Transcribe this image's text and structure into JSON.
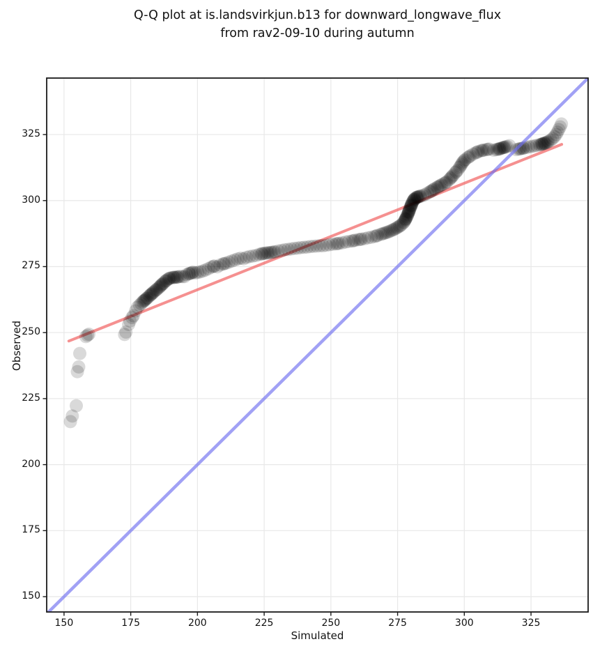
{
  "title": {
    "line1": "Q-Q plot at is.landsvirkjun.b13 for downward_longwave_flux",
    "line2": "from rav2-09-10 during autumn"
  },
  "colors": {
    "background": "#ffffff",
    "grid": "#e8e8e8",
    "spine": "#1a1a1a",
    "identity_line": "#6e6ef0",
    "fit_line": "#f05555",
    "scatter": "#000000"
  },
  "chart_data": {
    "type": "scatter",
    "title": "Q-Q plot at is.landsvirkjun.b13 for downward_longwave_flux from rav2-09-10 during autumn",
    "xlabel": "Simulated",
    "ylabel": "Observed",
    "xlim": [
      143.5,
      346.4
    ],
    "ylim": [
      144.2,
      346.4
    ],
    "xticks": [
      150,
      175,
      200,
      225,
      250,
      275,
      300,
      325
    ],
    "yticks": [
      150,
      175,
      200,
      225,
      250,
      275,
      300,
      325
    ],
    "grid": true,
    "legend": "none",
    "identity_line": {
      "name": "identity-1-to-1",
      "color": "#6e6ef0",
      "opacity": 0.65,
      "width": 4.5,
      "points": [
        [
          143.5,
          143.5
        ],
        [
          346.4,
          346.4
        ]
      ]
    },
    "fit_line": {
      "name": "quantile-fit",
      "color": "#f05555",
      "opacity": 0.65,
      "width": 4,
      "points": [
        [
          151.8,
          246.8
        ],
        [
          336.5,
          321.3
        ]
      ]
    },
    "scatter": {
      "name": "qq-points",
      "color": "#000000",
      "opacity": 0.15,
      "radius": 9.5,
      "points": [
        [
          152.4,
          216.3
        ],
        [
          153.1,
          218.4
        ],
        [
          154.6,
          222.3
        ],
        [
          155.0,
          235.2
        ],
        [
          155.5,
          237.0
        ],
        [
          155.9,
          242.1
        ],
        [
          158.2,
          248.5
        ],
        [
          158.8,
          249.0
        ],
        [
          159.3,
          249.4
        ],
        [
          172.7,
          249.3
        ],
        [
          173.2,
          250.2
        ],
        [
          174.2,
          253.1
        ],
        [
          174.7,
          254.4
        ],
        [
          175.5,
          255.7
        ],
        [
          176.0,
          256.4
        ],
        [
          176.8,
          258.2
        ],
        [
          177.5,
          259.6
        ],
        [
          178.3,
          260.4
        ],
        [
          178.9,
          261.0
        ],
        [
          179.5,
          261.6
        ],
        [
          180.1,
          262.1
        ],
        [
          180.7,
          262.7
        ],
        [
          181.3,
          263.2
        ],
        [
          181.9,
          263.8
        ],
        [
          182.5,
          264.4
        ],
        [
          183.1,
          264.9
        ],
        [
          183.7,
          265.5
        ],
        [
          184.3,
          266.0
        ],
        [
          184.9,
          266.5
        ],
        [
          185.5,
          267.0
        ],
        [
          186.1,
          267.6
        ],
        [
          186.7,
          268.2
        ],
        [
          187.3,
          268.8
        ],
        [
          187.9,
          269.4
        ],
        [
          188.5,
          269.9
        ],
        [
          189.1,
          270.3
        ],
        [
          189.7,
          270.6
        ],
        [
          179.8,
          262.0
        ],
        [
          181.0,
          263.0
        ],
        [
          182.2,
          264.1
        ],
        [
          183.4,
          265.2
        ],
        [
          184.6,
          266.2
        ],
        [
          185.8,
          267.3
        ],
        [
          187.0,
          268.5
        ],
        [
          188.2,
          269.6
        ],
        [
          189.4,
          270.5
        ],
        [
          186.4,
          268.0
        ],
        [
          182.8,
          264.6
        ],
        [
          180.4,
          262.4
        ],
        [
          190.3,
          270.8
        ],
        [
          190.9,
          270.9
        ],
        [
          191.5,
          270.9
        ],
        [
          192.1,
          271.0
        ],
        [
          192.8,
          271.1
        ],
        [
          193.5,
          271.3
        ],
        [
          194.3,
          271.2
        ],
        [
          195.1,
          271.2
        ],
        [
          196.0,
          272.0
        ],
        [
          196.8,
          272.3
        ],
        [
          197.6,
          272.5
        ],
        [
          198.4,
          272.9
        ],
        [
          199.2,
          272.6
        ],
        [
          200.1,
          272.8
        ],
        [
          191.2,
          270.9
        ],
        [
          192.4,
          271.0
        ],
        [
          197.0,
          272.4
        ],
        [
          198.0,
          272.7
        ],
        [
          201.0,
          273.0
        ],
        [
          202.0,
          273.3
        ],
        [
          203.0,
          273.7
        ],
        [
          204.1,
          274.2
        ],
        [
          205.2,
          274.8
        ],
        [
          206.3,
          275.2
        ],
        [
          207.4,
          274.9
        ],
        [
          208.5,
          275.6
        ],
        [
          209.6,
          276.0
        ],
        [
          210.7,
          276.3
        ],
        [
          211.8,
          276.7
        ],
        [
          212.9,
          277.1
        ],
        [
          214.0,
          277.5
        ],
        [
          215.1,
          277.9
        ],
        [
          206.0,
          275.1
        ],
        [
          210.0,
          276.1
        ],
        [
          216.2,
          278.2
        ],
        [
          217.3,
          278.0
        ],
        [
          218.4,
          278.5
        ],
        [
          219.5,
          278.8
        ],
        [
          220.7,
          279.0
        ],
        [
          221.9,
          279.2
        ],
        [
          223.1,
          279.6
        ],
        [
          224.3,
          279.9
        ],
        [
          225.5,
          280.1
        ],
        [
          226.7,
          280.2
        ],
        [
          227.9,
          280.4
        ],
        [
          229.1,
          280.6
        ],
        [
          230.3,
          280.9
        ],
        [
          231.5,
          281.1
        ],
        [
          232.7,
          281.4
        ],
        [
          233.9,
          281.5
        ],
        [
          235.1,
          281.7
        ],
        [
          236.3,
          281.9
        ],
        [
          237.5,
          282.0
        ],
        [
          238.7,
          282.2
        ],
        [
          239.9,
          282.3
        ],
        [
          241.1,
          282.4
        ],
        [
          242.3,
          282.6
        ],
        [
          243.5,
          282.7
        ],
        [
          244.7,
          282.8
        ],
        [
          225.0,
          280.0
        ],
        [
          226.2,
          280.2
        ],
        [
          227.4,
          280.3
        ],
        [
          228.6,
          280.5
        ],
        [
          224.0,
          279.8
        ],
        [
          245.9,
          282.9
        ],
        [
          247.1,
          282.9
        ],
        [
          248.3,
          283.1
        ],
        [
          249.5,
          283.3
        ],
        [
          250.7,
          283.5
        ],
        [
          251.9,
          283.6
        ],
        [
          253.1,
          283.8
        ],
        [
          254.3,
          284.0
        ],
        [
          255.5,
          284.3
        ],
        [
          256.7,
          284.5
        ],
        [
          257.9,
          284.7
        ],
        [
          259.1,
          285.0
        ],
        [
          260.3,
          285.2
        ],
        [
          261.5,
          285.4
        ],
        [
          262.7,
          285.6
        ],
        [
          252.5,
          283.7
        ],
        [
          258.5,
          284.8
        ],
        [
          261.0,
          285.3
        ],
        [
          263.9,
          285.9
        ],
        [
          265.1,
          286.1
        ],
        [
          266.3,
          286.4
        ],
        [
          267.5,
          286.8
        ],
        [
          268.7,
          287.2
        ],
        [
          269.9,
          287.6
        ],
        [
          271.1,
          288.0
        ],
        [
          272.3,
          288.5
        ],
        [
          273.5,
          289.0
        ],
        [
          274.6,
          289.6
        ],
        [
          275.6,
          290.2
        ],
        [
          276.5,
          290.9
        ],
        [
          270.5,
          287.8
        ],
        [
          273.0,
          288.8
        ],
        [
          275.0,
          289.9
        ],
        [
          267.0,
          286.6
        ],
        [
          269.3,
          287.4
        ],
        [
          271.7,
          288.2
        ],
        [
          274.0,
          289.3
        ],
        [
          276.0,
          290.5
        ],
        [
          277.2,
          291.6
        ],
        [
          277.7,
          292.4
        ],
        [
          278.1,
          293.2
        ],
        [
          278.5,
          294.0
        ],
        [
          278.8,
          294.8
        ],
        [
          279.1,
          295.6
        ],
        [
          279.4,
          296.4
        ],
        [
          279.7,
          297.2
        ],
        [
          280.0,
          298.0
        ],
        [
          280.3,
          298.8
        ],
        [
          280.7,
          299.6
        ],
        [
          281.1,
          300.3
        ],
        [
          281.6,
          300.9
        ],
        [
          282.2,
          301.3
        ],
        [
          282.9,
          301.5
        ],
        [
          283.6,
          301.7
        ],
        [
          277.4,
          291.9
        ],
        [
          277.9,
          292.8
        ],
        [
          278.3,
          293.6
        ],
        [
          278.7,
          294.4
        ],
        [
          279.0,
          295.2
        ],
        [
          279.3,
          296.0
        ],
        [
          279.6,
          296.8
        ],
        [
          279.9,
          297.6
        ],
        [
          280.2,
          298.4
        ],
        [
          280.5,
          299.2
        ],
        [
          280.9,
          300.0
        ],
        [
          281.4,
          300.6
        ],
        [
          282.0,
          301.1
        ],
        [
          282.6,
          301.4
        ],
        [
          283.3,
          301.6
        ],
        [
          278.0,
          293.0
        ],
        [
          279.2,
          295.8
        ],
        [
          280.1,
          298.2
        ],
        [
          281.2,
          300.4
        ],
        [
          282.4,
          301.2
        ],
        [
          284.4,
          301.9
        ],
        [
          285.3,
          302.3
        ],
        [
          286.2,
          302.8
        ],
        [
          287.1,
          303.3
        ],
        [
          288.0,
          303.9
        ],
        [
          288.9,
          304.5
        ],
        [
          289.8,
          305.0
        ],
        [
          290.7,
          305.5
        ],
        [
          291.6,
          306.0
        ],
        [
          292.5,
          306.5
        ],
        [
          293.4,
          307.1
        ],
        [
          294.3,
          307.9
        ],
        [
          295.1,
          308.8
        ],
        [
          295.9,
          309.7
        ],
        [
          296.7,
          310.6
        ],
        [
          297.5,
          311.5
        ],
        [
          298.2,
          312.5
        ],
        [
          298.9,
          313.6
        ],
        [
          299.6,
          314.7
        ],
        [
          300.4,
          315.6
        ],
        [
          301.3,
          316.3
        ],
        [
          302.3,
          317.0
        ],
        [
          287.5,
          303.5
        ],
        [
          290.2,
          305.2
        ],
        [
          293.0,
          306.8
        ],
        [
          295.5,
          309.2
        ],
        [
          297.0,
          311.0
        ],
        [
          298.5,
          313.0
        ],
        [
          300.0,
          315.2
        ],
        [
          291.2,
          305.8
        ],
        [
          288.5,
          304.2
        ],
        [
          294.8,
          308.4
        ],
        [
          299.2,
          314.2
        ],
        [
          301.8,
          316.6
        ],
        [
          303.3,
          317.6
        ],
        [
          304.3,
          318.1
        ],
        [
          305.3,
          318.6
        ],
        [
          306.3,
          318.9
        ],
        [
          307.3,
          319.1
        ],
        [
          308.3,
          319.3
        ],
        [
          309.3,
          319.5
        ],
        [
          304.8,
          318.3
        ],
        [
          306.8,
          319.0
        ],
        [
          308.8,
          319.4
        ],
        [
          311.0,
          319.1
        ],
        [
          312.0,
          319.3
        ],
        [
          313.0,
          319.6
        ],
        [
          314.0,
          319.9
        ],
        [
          315.0,
          320.2
        ],
        [
          316.0,
          320.5
        ],
        [
          316.9,
          320.8
        ],
        [
          312.5,
          319.4
        ],
        [
          313.5,
          319.7
        ],
        [
          314.5,
          320.0
        ],
        [
          315.5,
          320.3
        ],
        [
          313.2,
          319.5
        ],
        [
          314.8,
          320.1
        ],
        [
          319.5,
          319.3
        ],
        [
          320.4,
          319.5
        ],
        [
          321.3,
          319.7
        ],
        [
          322.2,
          319.9
        ],
        [
          323.1,
          320.1
        ],
        [
          320.8,
          319.6
        ],
        [
          322.0,
          319.8
        ],
        [
          324.1,
          320.3
        ],
        [
          325.1,
          320.5
        ],
        [
          326.1,
          320.7
        ],
        [
          327.1,
          320.9
        ],
        [
          328.1,
          321.1
        ],
        [
          329.0,
          321.4
        ],
        [
          329.9,
          321.7
        ],
        [
          330.8,
          322.0
        ],
        [
          331.6,
          322.4
        ],
        [
          332.4,
          322.9
        ],
        [
          333.1,
          323.5
        ],
        [
          328.6,
          321.2
        ],
        [
          329.5,
          321.5
        ],
        [
          330.4,
          321.8
        ],
        [
          331.2,
          322.2
        ],
        [
          329.2,
          321.4
        ],
        [
          330.0,
          321.7
        ],
        [
          333.8,
          324.2
        ],
        [
          334.4,
          325.0
        ],
        [
          334.9,
          325.9
        ],
        [
          335.4,
          326.9
        ],
        [
          335.9,
          327.9
        ],
        [
          336.4,
          329.0
        ]
      ]
    }
  }
}
